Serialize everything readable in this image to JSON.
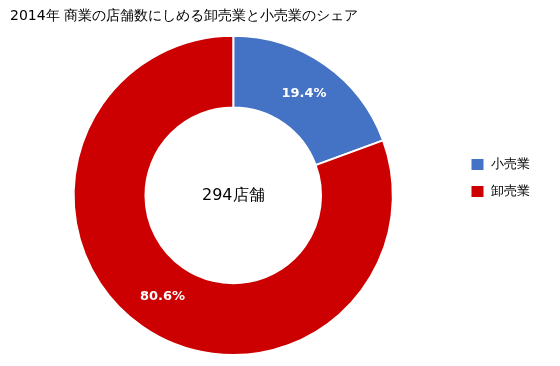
{
  "chart_data": {
    "type": "doughnut",
    "title": "2014年 商業の店舗数にしめる卸売業と小売業のシェア",
    "categories": [
      "小売業",
      "卸売業"
    ],
    "values": [
      19.4,
      80.6
    ],
    "value_labels": [
      "19.4%",
      "80.6%"
    ],
    "colors": [
      "#4472C4",
      "#CC0000"
    ],
    "data_labels": true,
    "annotations": [
      "294店舗"
    ],
    "legend": "right"
  }
}
